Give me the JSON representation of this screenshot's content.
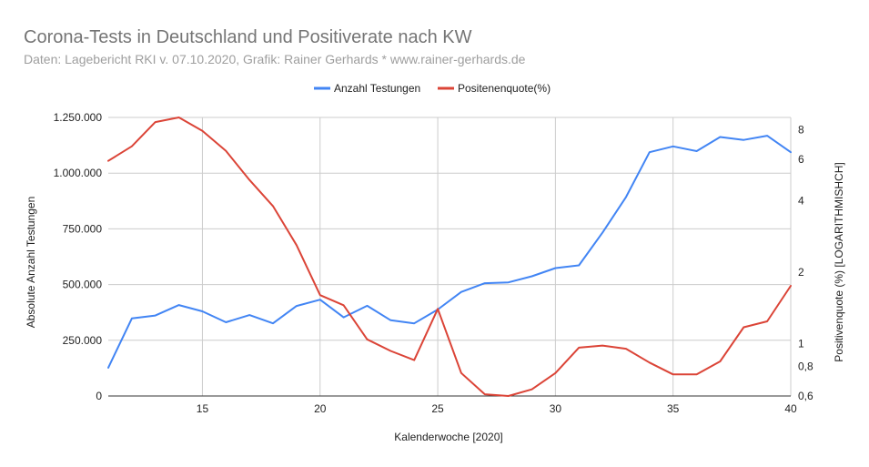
{
  "chart_data": {
    "type": "line",
    "title": "Corona-Tests in Deutschland und Positiverate nach KW",
    "subtitle": "Daten: Lagebericht RKI v. 07.10.2020, Grafik: Rainer Gerhards  * www.rainer-gerhards.de",
    "xlabel": "Kalenderwoche [2020]",
    "ylabel": "Absolute Anzahl Testungen",
    "y2label": "Positivenquote (%) [LOGARITHMISHCH]",
    "x": [
      11,
      12,
      13,
      14,
      15,
      16,
      17,
      18,
      19,
      20,
      21,
      22,
      23,
      24,
      25,
      26,
      27,
      28,
      29,
      30,
      31,
      32,
      33,
      34,
      35,
      36,
      37,
      38,
      39,
      40
    ],
    "xlim": [
      11,
      40
    ],
    "xticks": [
      15,
      20,
      25,
      30,
      35,
      40
    ],
    "ylim": [
      0,
      1250000
    ],
    "yticks": [
      0,
      250000,
      500000,
      750000,
      1000000,
      1250000
    ],
    "ytick_labels": [
      "0",
      "250.000",
      "500.000",
      "750.000",
      "1.000.000",
      "1.250.000"
    ],
    "y2lim": [
      0.6,
      9
    ],
    "y2scale": "log",
    "y2ticks": [
      0.6,
      0.8,
      1,
      2,
      4,
      6,
      8
    ],
    "y2tick_labels": [
      "0,6",
      "0,8",
      "1",
      "2",
      "4",
      "6",
      "8"
    ],
    "grid": true,
    "legend_position": "top",
    "series": [
      {
        "name": "Anzahl Testungen",
        "axis": "left",
        "color": "#4285f4",
        "values": [
          127000,
          348000,
          361000,
          408000,
          380000,
          331000,
          363000,
          326000,
          404000,
          432000,
          353000,
          405000,
          340000,
          326000,
          388000,
          467000,
          506000,
          510000,
          537000,
          574000,
          586000,
          733000,
          893000,
          1094000,
          1120000,
          1099000,
          1162000,
          1149000,
          1168000,
          1094000
        ]
      },
      {
        "name": "Positenenquote(%)",
        "axis": "right",
        "color": "#db4437",
        "values": [
          5.9,
          6.8,
          8.6,
          9.0,
          7.9,
          6.5,
          4.9,
          3.8,
          2.6,
          1.6,
          1.45,
          1.04,
          0.93,
          0.85,
          1.4,
          0.75,
          0.61,
          0.6,
          0.64,
          0.75,
          0.96,
          0.98,
          0.95,
          0.83,
          0.74,
          0.74,
          0.84,
          1.17,
          1.24,
          1.75
        ]
      }
    ]
  }
}
